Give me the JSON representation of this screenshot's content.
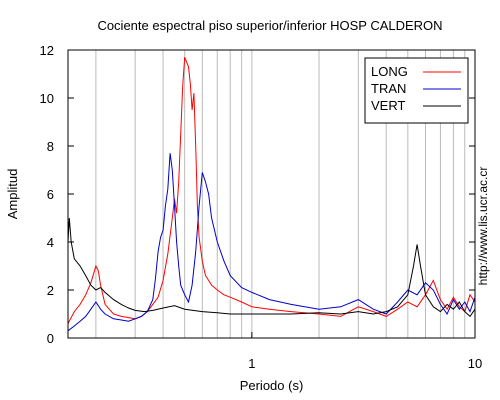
{
  "chart_data": {
    "type": "line",
    "title": "Cociente espectral piso superior/inferior  HOSP CALDERON",
    "xlabel": "Periodo (s)",
    "ylabel": "Amplitud",
    "x_scale": "log",
    "xlim": [
      0.15,
      10
    ],
    "ylim": [
      0,
      12
    ],
    "x_ticks": [
      {
        "value": 1,
        "label": "1"
      },
      {
        "value": 10,
        "label": "10"
      }
    ],
    "y_ticks": [
      0,
      2,
      4,
      6,
      8,
      10,
      12
    ],
    "grid": "vertical",
    "legend_position": "top-right",
    "watermark": "http://www.lis.ucr.ac.cr",
    "series": [
      {
        "name": "LONG",
        "color": "#ff0000",
        "x": [
          0.15,
          0.16,
          0.17,
          0.18,
          0.19,
          0.2,
          0.205,
          0.21,
          0.22,
          0.24,
          0.26,
          0.28,
          0.3,
          0.32,
          0.34,
          0.36,
          0.38,
          0.4,
          0.42,
          0.44,
          0.45,
          0.46,
          0.47,
          0.48,
          0.49,
          0.5,
          0.51,
          0.52,
          0.53,
          0.54,
          0.55,
          0.56,
          0.57,
          0.58,
          0.6,
          0.62,
          0.64,
          0.66,
          0.7,
          0.75,
          0.8,
          0.9,
          1.0,
          1.2,
          1.5,
          2.0,
          2.5,
          3.0,
          3.5,
          4.0,
          4.5,
          5.0,
          5.5,
          6.0,
          6.5,
          7.0,
          7.5,
          8.0,
          8.5,
          9.0,
          9.5,
          10.0
        ],
        "y": [
          0.6,
          1.1,
          1.4,
          1.8,
          2.3,
          3.0,
          2.8,
          2.2,
          1.4,
          1.0,
          0.9,
          0.85,
          0.8,
          0.9,
          1.1,
          1.4,
          1.7,
          2.4,
          3.5,
          5.0,
          5.8,
          5.2,
          6.5,
          8.5,
          10.5,
          11.7,
          11.5,
          11.3,
          10.6,
          9.5,
          10.2,
          8.0,
          5.5,
          4.2,
          3.2,
          2.6,
          2.4,
          2.2,
          2.0,
          1.8,
          1.7,
          1.5,
          1.3,
          1.2,
          1.1,
          1.0,
          0.9,
          1.3,
          1.1,
          0.9,
          1.2,
          1.5,
          1.3,
          1.8,
          2.4,
          1.6,
          1.2,
          1.7,
          1.3,
          1.1,
          1.8,
          1.5
        ]
      },
      {
        "name": "TRAN",
        "color": "#0000cc",
        "x": [
          0.15,
          0.16,
          0.17,
          0.18,
          0.19,
          0.2,
          0.21,
          0.22,
          0.24,
          0.26,
          0.28,
          0.3,
          0.32,
          0.34,
          0.36,
          0.37,
          0.38,
          0.39,
          0.4,
          0.41,
          0.42,
          0.43,
          0.44,
          0.45,
          0.46,
          0.47,
          0.48,
          0.5,
          0.52,
          0.54,
          0.56,
          0.58,
          0.6,
          0.62,
          0.64,
          0.66,
          0.7,
          0.75,
          0.8,
          0.9,
          1.0,
          1.2,
          1.5,
          2.0,
          2.5,
          3.0,
          3.5,
          4.0,
          4.5,
          5.0,
          5.5,
          6.0,
          6.5,
          7.0,
          7.5,
          8.0,
          8.5,
          9.0,
          9.5,
          10.0
        ],
        "y": [
          0.3,
          0.5,
          0.7,
          0.9,
          1.2,
          1.5,
          1.2,
          1.0,
          0.8,
          0.75,
          0.7,
          0.8,
          0.9,
          1.1,
          1.6,
          2.5,
          3.6,
          4.2,
          4.5,
          5.5,
          6.2,
          7.7,
          7.0,
          5.5,
          4.0,
          3.0,
          2.2,
          1.8,
          1.5,
          2.2,
          3.6,
          5.5,
          6.9,
          6.5,
          6.0,
          5.0,
          4.0,
          3.2,
          2.6,
          2.1,
          1.9,
          1.6,
          1.4,
          1.2,
          1.3,
          1.6,
          1.2,
          1.0,
          1.5,
          2.0,
          1.8,
          2.3,
          2.0,
          1.4,
          1.0,
          1.6,
          1.2,
          1.5,
          1.1,
          1.7
        ]
      },
      {
        "name": "VERT",
        "color": "#000000",
        "x": [
          0.15,
          0.152,
          0.155,
          0.16,
          0.17,
          0.18,
          0.19,
          0.2,
          0.21,
          0.22,
          0.24,
          0.26,
          0.28,
          0.3,
          0.33,
          0.36,
          0.4,
          0.45,
          0.5,
          0.6,
          0.7,
          0.8,
          1.0,
          1.2,
          1.5,
          2.0,
          2.5,
          3.0,
          3.5,
          4.0,
          4.5,
          5.0,
          5.3,
          5.5,
          5.7,
          6.0,
          6.5,
          7.0,
          7.5,
          8.0,
          8.5,
          9.0,
          9.5,
          10.0
        ],
        "y": [
          4.0,
          5.0,
          4.0,
          3.3,
          3.0,
          2.6,
          2.2,
          2.0,
          2.1,
          1.9,
          1.6,
          1.4,
          1.25,
          1.15,
          1.1,
          1.15,
          1.25,
          1.35,
          1.2,
          1.1,
          1.05,
          1.0,
          1.0,
          1.0,
          1.0,
          1.05,
          1.0,
          1.1,
          1.0,
          1.1,
          1.3,
          1.8,
          3.0,
          3.9,
          3.0,
          1.8,
          1.3,
          1.1,
          1.4,
          1.2,
          1.5,
          1.1,
          0.9,
          1.2
        ]
      }
    ]
  }
}
